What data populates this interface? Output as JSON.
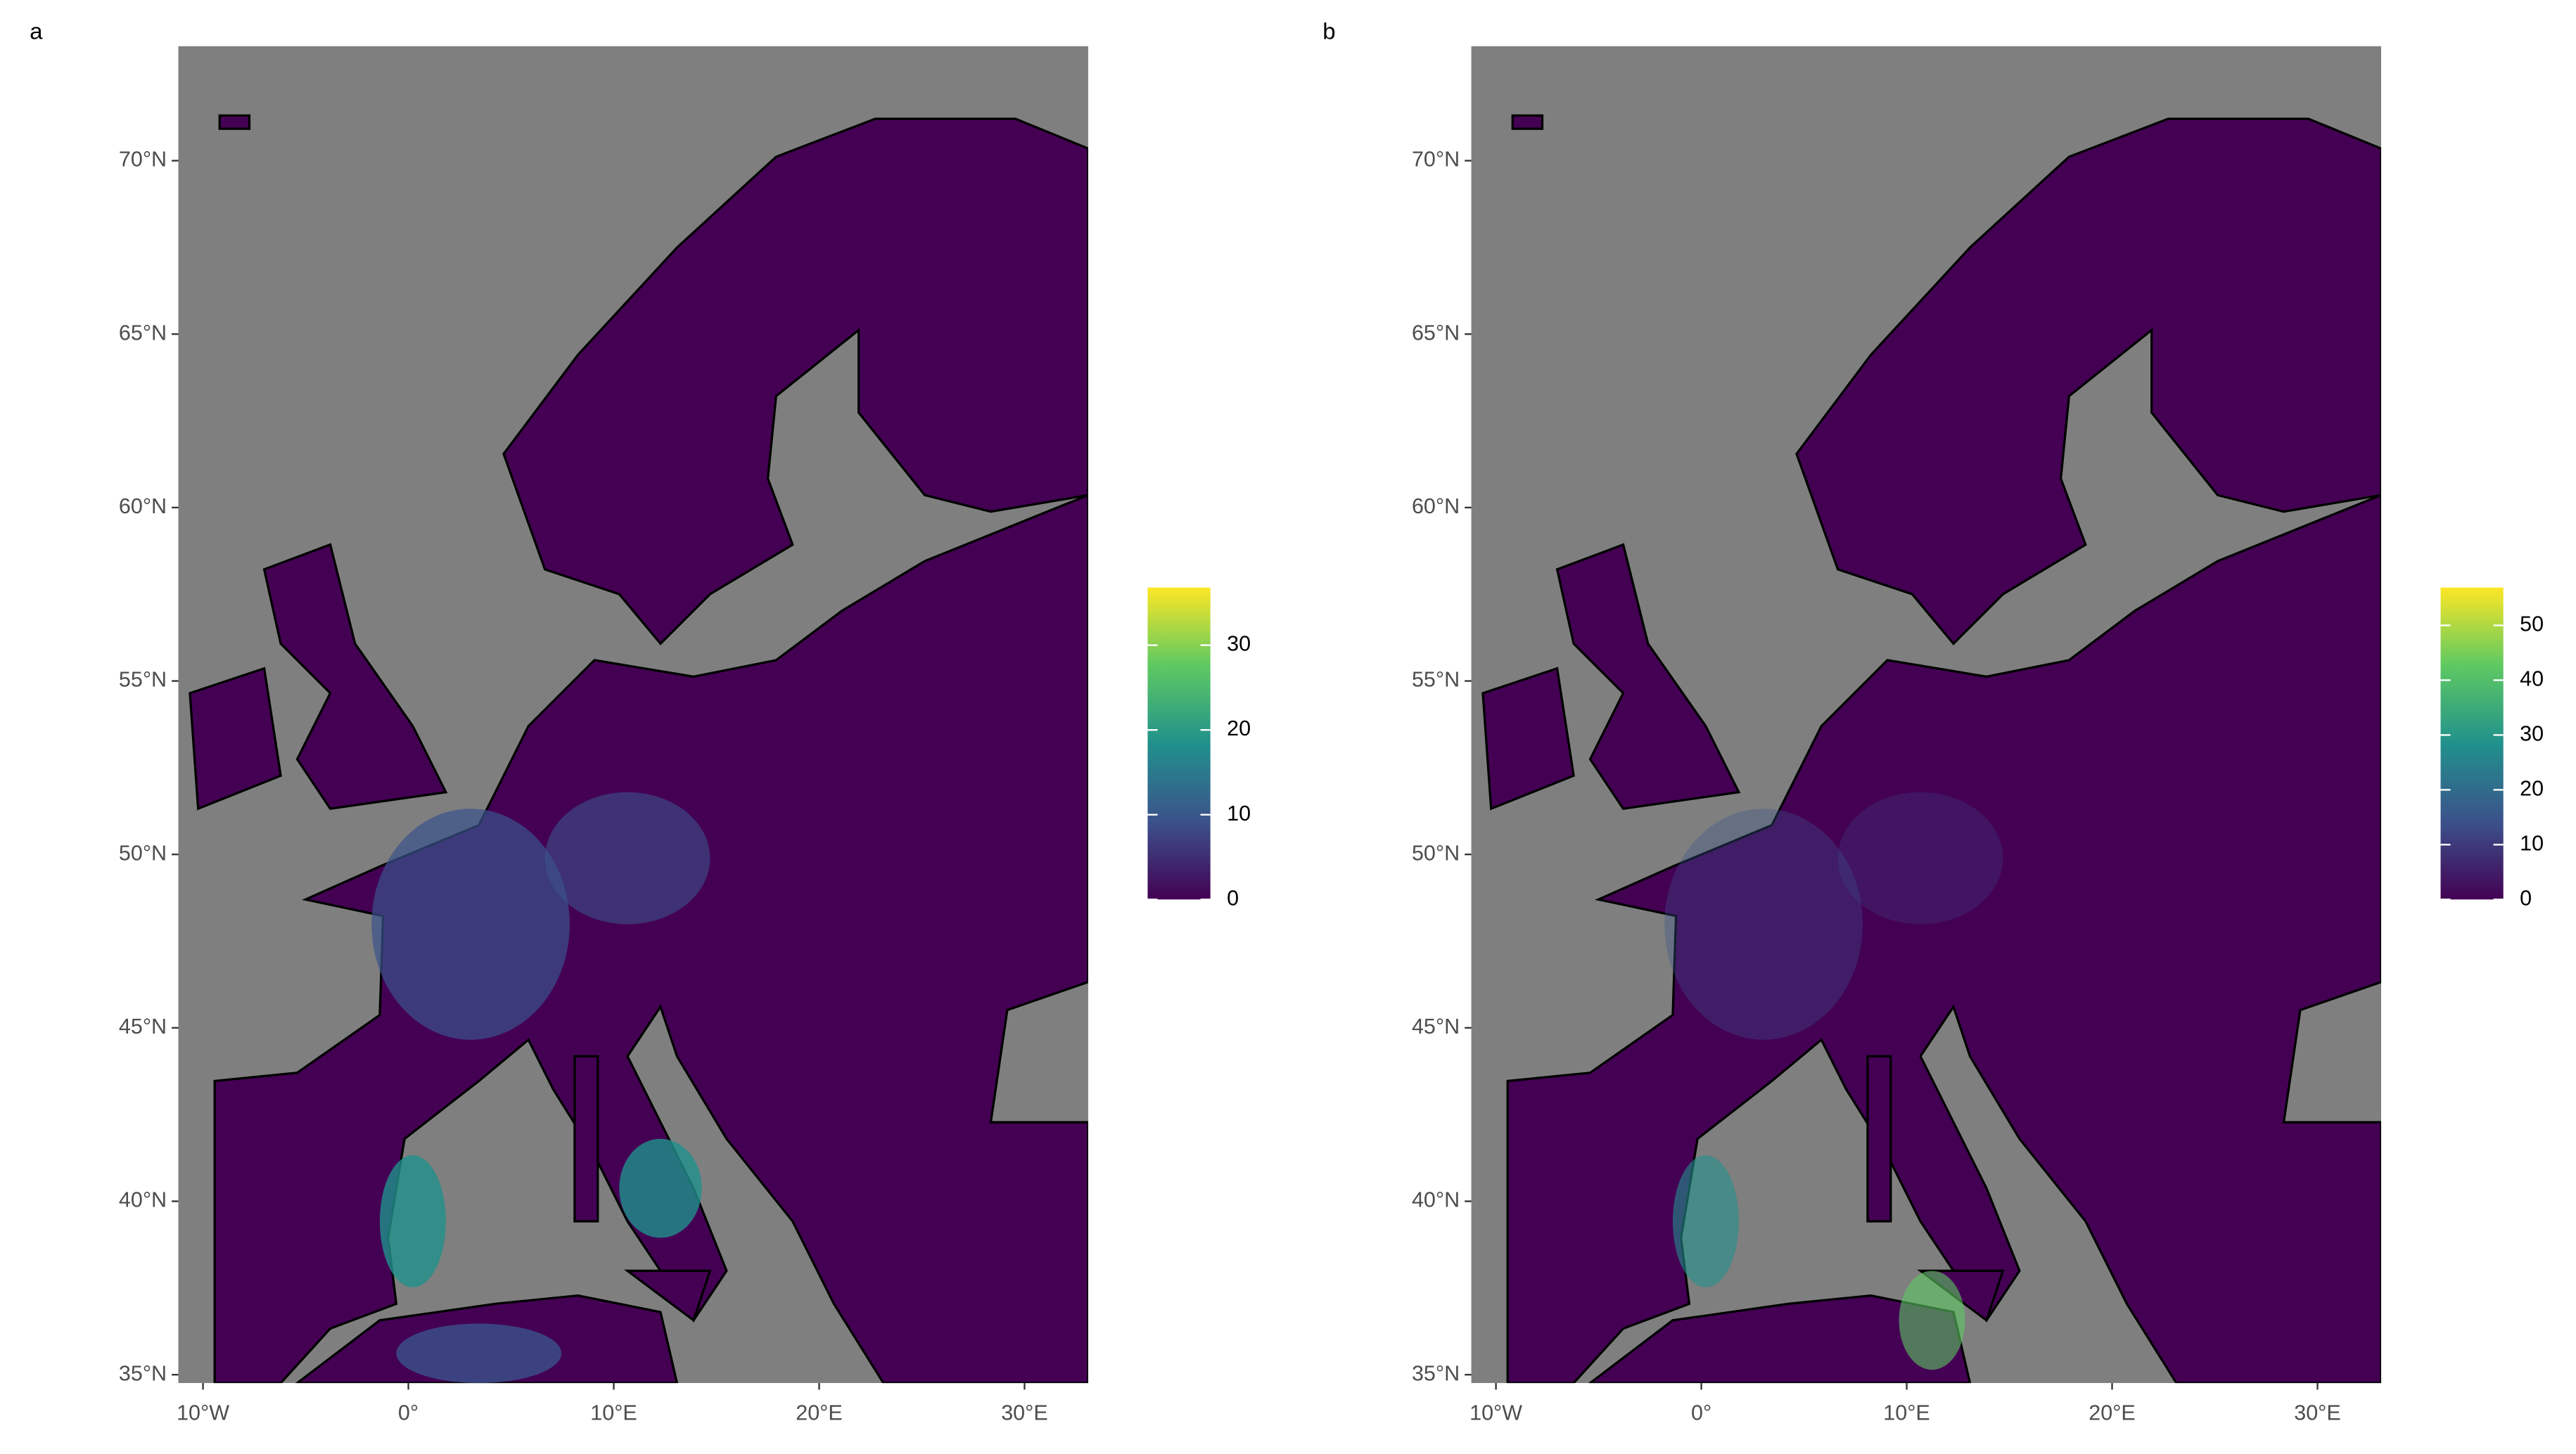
{
  "panels": [
    {
      "label": "a",
      "xlim": [
        -11.2,
        33.1
      ],
      "ylim": [
        34.76,
        73.3
      ],
      "xticks": [
        {
          "value": -10,
          "label": "10°W"
        },
        {
          "value": 0,
          "label": "0°"
        },
        {
          "value": 10,
          "label": "10°E"
        },
        {
          "value": 20,
          "label": "20°E"
        },
        {
          "value": 30,
          "label": "30°E"
        }
      ],
      "yticks": [
        {
          "value": 35,
          "label": "35°N"
        },
        {
          "value": 40,
          "label": "40°N"
        },
        {
          "value": 45,
          "label": "45°N"
        },
        {
          "value": 50,
          "label": "50°N"
        },
        {
          "value": 55,
          "label": "55°N"
        },
        {
          "value": 60,
          "label": "60°N"
        },
        {
          "value": 65,
          "label": "65°N"
        },
        {
          "value": 70,
          "label": "70°N"
        }
      ],
      "colorbar": {
        "lim": [
          0,
          36.8
        ],
        "ticks": [
          0,
          10,
          20,
          30
        ],
        "colors": [
          "#440154",
          "#3b528b",
          "#21918c",
          "#5ec962",
          "#fde725"
        ]
      }
    },
    {
      "label": "b",
      "xlim": [
        -11.2,
        33.1
      ],
      "ylim": [
        34.76,
        73.3
      ],
      "xticks": [
        {
          "value": -10,
          "label": "10°W"
        },
        {
          "value": 0,
          "label": "0°"
        },
        {
          "value": 10,
          "label": "10°E"
        },
        {
          "value": 20,
          "label": "20°E"
        },
        {
          "value": 30,
          "label": "30°E"
        }
      ],
      "yticks": [
        {
          "value": 35,
          "label": "35°N"
        },
        {
          "value": 40,
          "label": "40°N"
        },
        {
          "value": 45,
          "label": "45°N"
        },
        {
          "value": 50,
          "label": "50°N"
        },
        {
          "value": 55,
          "label": "55°N"
        },
        {
          "value": 60,
          "label": "60°N"
        },
        {
          "value": 65,
          "label": "65°N"
        },
        {
          "value": 70,
          "label": "70°N"
        }
      ],
      "colorbar": {
        "lim": [
          0,
          56.9
        ],
        "ticks": [
          0,
          10,
          20,
          30,
          40,
          50
        ],
        "colors": [
          "#440154",
          "#3b528b",
          "#21918c",
          "#5ec962",
          "#fde725"
        ]
      }
    }
  ]
}
